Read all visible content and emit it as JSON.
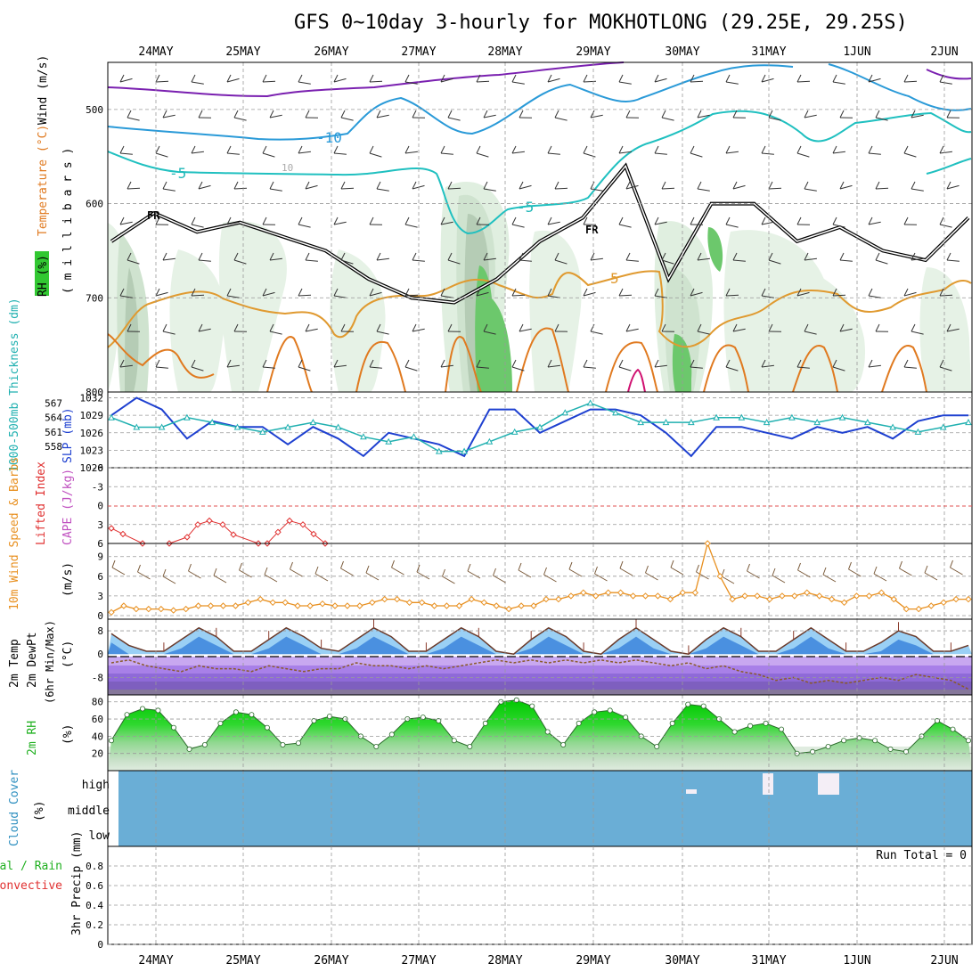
{
  "page": {
    "title": "GFS 0~10day 3-hourly for MOKHOTLONG (29.25E, 29.25S)"
  },
  "colors": {
    "temperature_label": "#e03030",
    "wind_label": "#000000",
    "rh_label_bg": "#32c832",
    "thickness_label": "#20b0b0",
    "slp": "#1e40d0",
    "lifted_index": "#e03030",
    "cape": "#c050c0",
    "wind10m": "#e89020",
    "rh2m": "#20b020",
    "cloud": "#6aaed6",
    "precip_total": "#20b020",
    "precip_convective": "#e03030"
  },
  "chart_data": [
    {
      "id": "upper_air",
      "type": "heatmap",
      "title": "",
      "ylabel_parts": [
        "RH (%)",
        "Temperature (°C)",
        "Wind (m/s)"
      ],
      "ylabel_units": "( m i l l i b a r s )",
      "x_dates": [
        "24MAY",
        "25MAY",
        "26MAY",
        "27MAY",
        "28MAY",
        "29MAY",
        "30MAY",
        "31MAY",
        "1JUN",
        "2JUN"
      ],
      "y_ticks": [
        "500",
        "600",
        "700",
        "800"
      ],
      "ylim": [
        450,
        800
      ],
      "contour_labels": [
        "-10",
        "-5",
        "-5",
        "5",
        "FR",
        "FR",
        "10"
      ],
      "freezing_level_mb": [
        640,
        610,
        630,
        620,
        635,
        650,
        680,
        700,
        705,
        680,
        640,
        615,
        560,
        680,
        600,
        600,
        640,
        625,
        650,
        660,
        615
      ]
    },
    {
      "id": "thickness_slp",
      "type": "line",
      "ylabel_left": "1000-500mb Thickness (dm)",
      "ylabel_right": "SLP (mb)",
      "left_ticks": [
        "567",
        "564",
        "561",
        "558"
      ],
      "right_ticks": [
        "1032",
        "1029",
        "1026",
        "1023",
        "1020"
      ],
      "series": [
        {
          "name": "SLP (mb)",
          "values": [
            1029,
            1032,
            1030,
            1025,
            1028,
            1027,
            1027,
            1024,
            1027,
            1025,
            1022,
            1026,
            1025,
            1024,
            1022,
            1030,
            1030,
            1026,
            1028,
            1030,
            1030,
            1029,
            1026,
            1022,
            1027,
            1027,
            1026,
            1025,
            1027,
            1026,
            1027,
            1025,
            1028,
            1029,
            1029
          ]
        },
        {
          "name": "1000-500mb Thickness (dm)",
          "values": [
            564,
            562,
            562,
            564,
            563,
            562,
            561,
            562,
            563,
            562,
            560,
            559,
            560,
            557,
            557,
            559,
            561,
            562,
            565,
            567,
            565,
            563,
            563,
            563,
            564,
            564,
            563,
            564,
            563,
            564,
            563,
            562,
            561,
            562,
            563
          ]
        }
      ]
    },
    {
      "id": "li_cape",
      "type": "line",
      "ylabel_left": "Lifted Index",
      "ylabel_right": "CAPE (J/kg)",
      "y_ticks": [
        "-6",
        "-3",
        "0",
        "3",
        "6"
      ],
      "ylim": [
        -6,
        6
      ],
      "series": [
        {
          "name": "Lifted Index",
          "values": [
            3.6,
            4.5,
            6.0,
            6.0,
            5.0,
            3.0,
            2.4,
            3.0,
            4.6,
            6.0,
            6.0,
            4.2,
            2.4,
            3.0,
            4.5,
            6.0
          ]
        }
      ]
    },
    {
      "id": "wind10m",
      "type": "line",
      "ylabel": "10m Wind Speed & Barbs",
      "units": "(m/s)",
      "y_ticks": [
        "0",
        "3",
        "6",
        "9"
      ],
      "ylim": [
        0,
        11
      ],
      "series": [
        {
          "name": "10m Wind Speed",
          "values": [
            0.5,
            1.5,
            1.0,
            1.0,
            1.0,
            0.8,
            1.0,
            1.5,
            1.5,
            1.5,
            1.5,
            2.0,
            2.5,
            2.0,
            2.0,
            1.5,
            1.5,
            1.8,
            1.5,
            1.5,
            1.5,
            2.0,
            2.5,
            2.5,
            2.0,
            2.0,
            1.5,
            1.5,
            1.5,
            2.5,
            2.0,
            1.5,
            1.0,
            1.5,
            1.5,
            2.5,
            2.5,
            3.0,
            3.5,
            3.0,
            3.5,
            3.5,
            3.0,
            3.0,
            3.0,
            2.5,
            3.5,
            3.5,
            11.0,
            6.0,
            2.5,
            3.0,
            3.0,
            2.5,
            3.0,
            3.0,
            3.5,
            3.0,
            2.5,
            2.0,
            3.0,
            3.0,
            3.5,
            2.5,
            1.0,
            1.0,
            1.5,
            2.0,
            2.5,
            2.5
          ]
        }
      ]
    },
    {
      "id": "temp2m",
      "type": "area",
      "ylabel_parts": [
        "2m Temp",
        "2m DewPt",
        "(6hr Min/Max)"
      ],
      "units": "(°C)",
      "y_ticks": [
        "8",
        "0",
        "-8"
      ],
      "ylim": [
        -14,
        12
      ],
      "series": [
        {
          "name": "2m Temp",
          "values": [
            7,
            3,
            1,
            1,
            5,
            9,
            6,
            1,
            1,
            5,
            9,
            6,
            2,
            1,
            5,
            9,
            6,
            1,
            1,
            5,
            9,
            6,
            1,
            0,
            5,
            9,
            6,
            1,
            0,
            5,
            9,
            5,
            1,
            0,
            5,
            9,
            6,
            1,
            1,
            5,
            9,
            5,
            1,
            1,
            4,
            8,
            6,
            1,
            1,
            3
          ]
        },
        {
          "name": "2m DewPt",
          "values": [
            -3,
            -2,
            -4,
            -5,
            -6,
            -4,
            -5,
            -5,
            -6,
            -4,
            -5,
            -6,
            -5,
            -5,
            -3,
            -4,
            -4,
            -5,
            -4,
            -5,
            -4,
            -3,
            -2,
            -3,
            -2,
            -3,
            -2,
            -3,
            -2,
            -3,
            -2,
            -3,
            -4,
            -3,
            -5,
            -4,
            -6,
            -7,
            -9,
            -8,
            -10,
            -9,
            -10,
            -9,
            -8,
            -9,
            -7,
            -8,
            -9,
            -12
          ]
        }
      ]
    },
    {
      "id": "rh2m",
      "type": "area",
      "ylabel": "2m RH",
      "units": "(%)",
      "y_ticks": [
        "20",
        "40",
        "60",
        "80"
      ],
      "ylim": [
        0,
        88
      ],
      "series": [
        {
          "name": "2m RH",
          "values": [
            35,
            65,
            72,
            70,
            50,
            25,
            30,
            55,
            68,
            65,
            50,
            30,
            32,
            58,
            63,
            60,
            40,
            28,
            42,
            60,
            62,
            58,
            35,
            28,
            55,
            80,
            82,
            75,
            45,
            30,
            55,
            68,
            70,
            62,
            40,
            28,
            55,
            77,
            75,
            60,
            45,
            52,
            55,
            48,
            20,
            22,
            28,
            35,
            38,
            35,
            25,
            22,
            40,
            58,
            48,
            35
          ]
        }
      ]
    },
    {
      "id": "cloud",
      "type": "heatmap",
      "ylabel": "Cloud Cover",
      "units": "(%)",
      "levels": [
        "high",
        "middle",
        "low"
      ]
    },
    {
      "id": "precip",
      "type": "bar",
      "ylabel_parts": [
        "Total / Rain",
        "Convective"
      ],
      "ylabel": "3hr Precip (mm)",
      "y_ticks": [
        "0",
        "0.2",
        "0.4",
        "0.6",
        "0.8"
      ],
      "ylim": [
        0,
        1
      ],
      "run_total": "Run Total = 0",
      "values": []
    }
  ]
}
